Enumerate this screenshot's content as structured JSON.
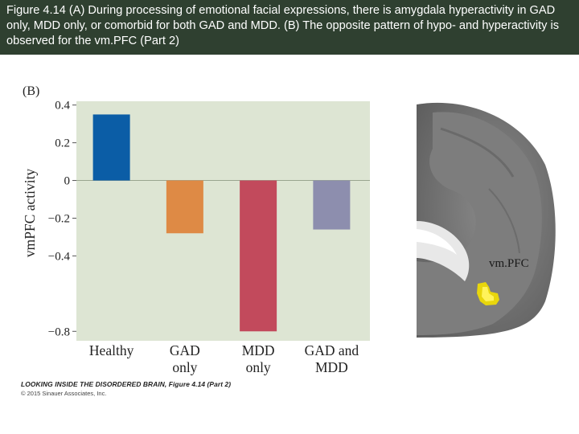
{
  "slide": {
    "caption": "Figure 4.14  (A) During processing of emotional facial expressions, there is amygdala hyperactivity in GAD only, MDD only, or comorbid for both GAD and MDD. (B) The opposite pattern of hypo- and hyperactivity is observed for the vm.PFC (Part 2)"
  },
  "chart_data": {
    "type": "bar",
    "panel_label": "(B)",
    "ylabel": "vmPFC activity",
    "xlabel": "",
    "categories": [
      [
        "Healthy"
      ],
      [
        "GAD",
        "only"
      ],
      [
        "MDD",
        "only"
      ],
      [
        "GAD and",
        "MDD"
      ]
    ],
    "values": [
      0.35,
      -0.28,
      -0.8,
      -0.26
    ],
    "colors": [
      "#0b5da6",
      "#de8a45",
      "#c24a5c",
      "#8d8eae"
    ],
    "ylim": [
      -0.85,
      0.42
    ],
    "yticks": [
      0.4,
      0.2,
      0,
      -0.2,
      -0.4,
      -0.8
    ],
    "ytick_labels": [
      "0.4",
      "0.2",
      "0",
      "−0.2",
      "−0.4",
      "−0.8"
    ],
    "background": "#dde5d3"
  },
  "brain_image": {
    "label": "vm.PFC"
  },
  "credit": {
    "book": "LOOKING INSIDE THE DISORDERED BRAIN, Figure 4.14 (Part 2)",
    "copyright": "© 2015 Sinauer Associates, Inc."
  }
}
